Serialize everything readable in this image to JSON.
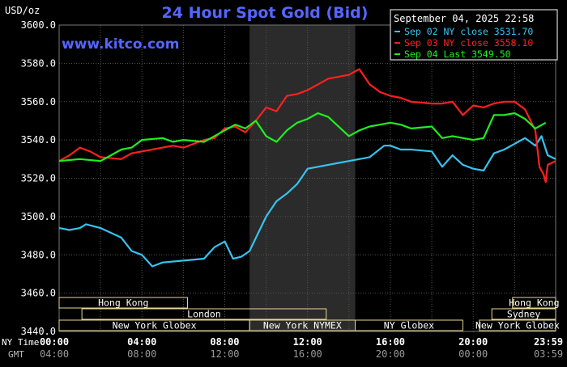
{
  "chart_data": {
    "type": "line",
    "title": "24 Hour Spot Gold (Bid)",
    "ylabel": "USD/oz",
    "watermark": "www.kitco.com",
    "timestamp": "September 04, 2025 22:58",
    "ylim": [
      3440,
      3600
    ],
    "yticks": [
      "3600.0",
      "3580.0",
      "3560.0",
      "3540.0",
      "3520.0",
      "3500.0",
      "3480.0",
      "3460.0",
      "3440.0"
    ],
    "x_unit": "hours (NY time)",
    "xlim": [
      0,
      23.983
    ],
    "grid": true,
    "shaded_period": [
      9.2,
      14.3
    ],
    "x_rows": {
      "ny_label": "NY Time",
      "gmt_label": "GMT",
      "ny": [
        "00:00",
        "04:00",
        "08:00",
        "12:00",
        "16:00",
        "20:00",
        "23:59"
      ],
      "gmt": [
        "04:00",
        "08:00",
        "12:00",
        "16:00",
        "20:00",
        "00:00",
        "03:59"
      ]
    },
    "sessions": [
      {
        "name": "Hong Kong",
        "start": 0,
        "end": 6.2,
        "row": 0
      },
      {
        "name": "Hong Kong",
        "start": 21.9,
        "end": 24,
        "row": 0
      },
      {
        "name": "London",
        "start": 1.1,
        "end": 12.9,
        "row": 1
      },
      {
        "name": "Sydney",
        "start": 20.9,
        "end": 24,
        "row": 1
      },
      {
        "name": "New York Globex",
        "start": 0,
        "end": 9.2,
        "row": 2
      },
      {
        "name": "New York NYMEX",
        "start": 9.2,
        "end": 14.3,
        "row": 2
      },
      {
        "name": "NY Globex",
        "start": 14.3,
        "end": 19.5,
        "row": 2
      },
      {
        "name": "New York Globex",
        "start": 20.3,
        "end": 24,
        "row": 2
      }
    ],
    "series": [
      {
        "name": "Sep 02 NY close 3531.70",
        "color": "#35c3f0",
        "x": [
          0,
          0.5,
          1,
          1.3,
          2,
          3,
          3.5,
          4,
          4.5,
          5,
          6,
          7,
          7.5,
          8,
          8.4,
          8.8,
          9.2,
          10,
          10.5,
          11,
          11.5,
          12,
          13,
          13.5,
          14,
          15,
          15.7,
          16,
          16.5,
          17,
          18,
          18.5,
          19,
          19.5,
          20,
          20.5,
          21,
          21.5,
          22,
          22.5,
          23,
          23.3,
          23.6,
          23.98
        ],
        "y": [
          3494,
          3493,
          3494,
          3496,
          3494,
          3489,
          3482,
          3480,
          3474,
          3476,
          3477,
          3478,
          3484,
          3487,
          3478,
          3479,
          3482,
          3500,
          3508,
          3512,
          3517,
          3525,
          3527,
          3528,
          3529,
          3531,
          3537,
          3537,
          3535,
          3535,
          3534,
          3526,
          3532,
          3527,
          3525,
          3524,
          3533,
          3535,
          3538,
          3541,
          3537,
          3542,
          3532,
          3530
        ]
      },
      {
        "name": "Sep 03 NY close 3558.10",
        "color": "#ff2020",
        "x": [
          0,
          0.5,
          1,
          1.5,
          2,
          3,
          3.5,
          4,
          4.5,
          5,
          5.5,
          6,
          7,
          7.5,
          8,
          8.5,
          9,
          9.5,
          10,
          10.5,
          11,
          11.5,
          12,
          12.5,
          13,
          14,
          14.5,
          15,
          15.5,
          16,
          16.5,
          17,
          18,
          18.5,
          19,
          19.5,
          20,
          20.5,
          21,
          21.5,
          22,
          22.5,
          23,
          23.2,
          23.4,
          23.5,
          23.6,
          23.98
        ],
        "y": [
          3529,
          3532,
          3536,
          3534,
          3531,
          3530,
          3533,
          3534,
          3535,
          3536,
          3537,
          3536,
          3540,
          3541,
          3546,
          3547,
          3544,
          3550,
          3557,
          3555,
          3563,
          3564,
          3566,
          3569,
          3572,
          3574,
          3577,
          3569,
          3565,
          3563,
          3562,
          3560,
          3559,
          3559,
          3560,
          3553,
          3558,
          3557,
          3559,
          3560,
          3560,
          3556,
          3545,
          3526,
          3522,
          3518,
          3527,
          3529
        ]
      },
      {
        "name": "Sep 04 Last 3549.50",
        "color": "#20ee20",
        "x": [
          0,
          1,
          2,
          3,
          3.5,
          4,
          5,
          5.5,
          6,
          7,
          8,
          8.5,
          9,
          9.5,
          10,
          10.5,
          11,
          11.5,
          12,
          12.5,
          13,
          14,
          14.5,
          15,
          16,
          16.5,
          17,
          18,
          18.5,
          19,
          20,
          20.5,
          21,
          21.5,
          22,
          22.5,
          23,
          23.5
        ],
        "y": [
          3529,
          3530,
          3529,
          3535,
          3536,
          3540,
          3541,
          3539,
          3540,
          3539,
          3545,
          3548,
          3546,
          3550,
          3542,
          3539,
          3545,
          3549,
          3551,
          3554,
          3552,
          3542,
          3545,
          3547,
          3549,
          3548,
          3546,
          3547,
          3541,
          3542,
          3540,
          3541,
          3553,
          3553,
          3554,
          3551,
          3546,
          3549
        ]
      }
    ]
  }
}
